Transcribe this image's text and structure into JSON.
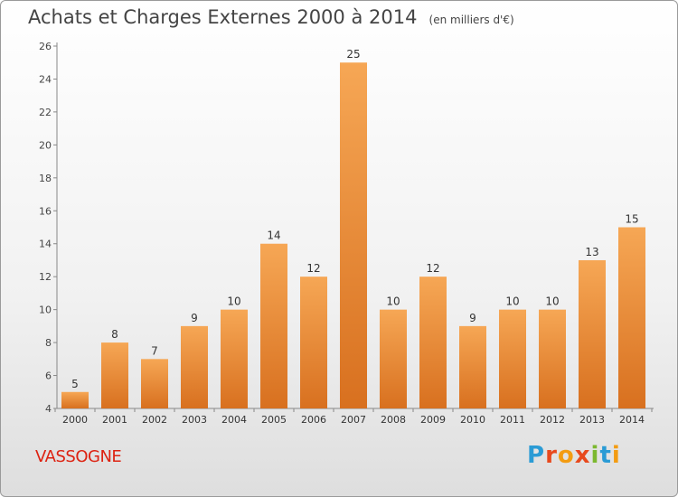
{
  "title": "Achats et Charges Externes 2000 à 2014",
  "unit_note": "(en milliers d'€)",
  "place": "VASSOGNE",
  "brand": "Proxiti",
  "colors": {
    "bar_light": "#f6a755",
    "bar_dark": "#d8701f",
    "place_text": "#dd2211",
    "brand_letters": [
      "#2a9bd5",
      "#e8491d",
      "#f39c12",
      "#e8491d",
      "#7cb82f",
      "#2a9bd5",
      "#f39c12"
    ]
  },
  "chart_data": {
    "type": "bar",
    "categories": [
      "2000",
      "2001",
      "2002",
      "2003",
      "2004",
      "2005",
      "2006",
      "2007",
      "2008",
      "2009",
      "2010",
      "2011",
      "2012",
      "2013",
      "2014"
    ],
    "values": [
      5,
      8,
      7,
      9,
      10,
      14,
      12,
      25,
      10,
      12,
      9,
      10,
      10,
      13,
      15
    ],
    "ylim": [
      4,
      26
    ],
    "yticks": [
      4,
      6,
      8,
      10,
      12,
      14,
      16,
      18,
      20,
      22,
      24,
      26
    ],
    "grid": false,
    "data_labels": true
  }
}
